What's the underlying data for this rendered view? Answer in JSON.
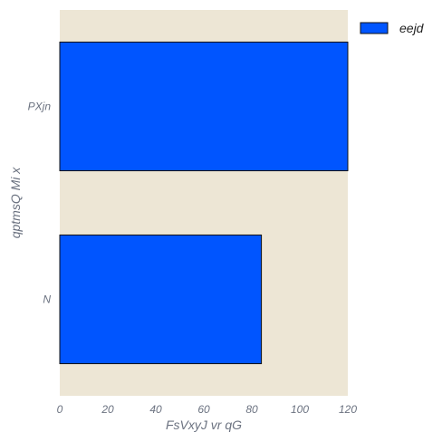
{
  "chart_data": {
    "type": "bar",
    "orientation": "horizontal",
    "categories": [
      "PXjn",
      "N"
    ],
    "series": [
      {
        "name": "eejd",
        "values": [
          120,
          84
        ],
        "color": "#0055ff"
      }
    ],
    "xlabel": "FsVxyJ vr qG",
    "ylabel": "qptmsQ Mi x",
    "xlim": [
      0,
      120
    ],
    "xticks": [
      0,
      20,
      40,
      60,
      80,
      100,
      120
    ],
    "grid": false,
    "legend": "top-right",
    "plot_background": "#ede6d5",
    "bar_edge_color": "#111111"
  }
}
